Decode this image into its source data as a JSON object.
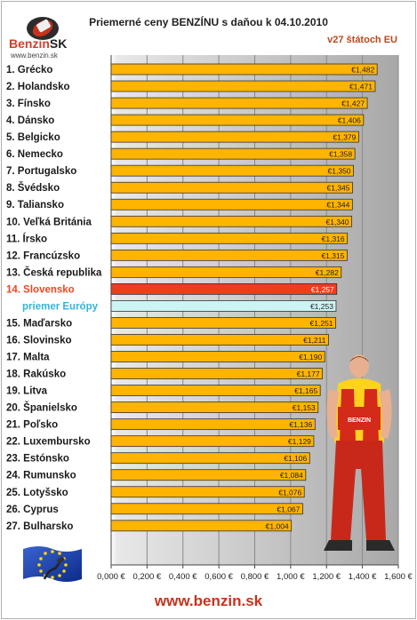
{
  "header": {
    "logo_text_1": "Benzin",
    "logo_text_2": "SK",
    "logo_url": "www.benzin.sk",
    "title": "Priemerné ceny BENZÍNU s daňou k 04.10.2010",
    "subtitle": "v27 štátoch EU"
  },
  "footer": {
    "url": "www.benzin.sk"
  },
  "colors": {
    "bar": "#ffb400",
    "bar_highlight": "#f03c1e",
    "bar_average": "#ccf4f4",
    "highlight_label": "#f0461e",
    "average_label": "#32b4dc",
    "plot_bg": "#a8a8a8"
  },
  "icons": [
    "logo-car-icon",
    "eu-flag-icon",
    "mechanic-figure-icon"
  ],
  "chart_data": {
    "type": "bar",
    "orientation": "horizontal",
    "title": "Priemerné ceny BENZÍNU s daňou k 04.10.2010",
    "subtitle": "v27 štátoch EU",
    "xlim": [
      0,
      1.6
    ],
    "x_ticks": [
      "0,000 €",
      "0,200 €",
      "0,400 €",
      "0,600 €",
      "0,800 €",
      "1,000 €",
      "1,200 €",
      "1,400 €",
      "1,600 €"
    ],
    "grid": "vertical",
    "categories": [
      "1. Grécko",
      "2. Holandsko",
      "3. Fínsko",
      "4. Dánsko",
      "5. Belgicko",
      "6. Nemecko",
      "7. Portugalsko",
      "8. Švédsko",
      "9. Taliansko",
      "10. Veľká Británia",
      "11. Írsko",
      "12. Francúzsko",
      "13. Česká republika",
      "14. Slovensko",
      "priemer Európy",
      "15. Maďarsko",
      "16. Slovinsko",
      "17. Malta",
      "18. Rakúsko",
      "19. Litva",
      "20. Španielsko",
      "21. Poľsko",
      "22. Luxembursko",
      "23. Estónsko",
      "24. Rumunsko",
      "25. Lotyšsko",
      "26. Cyprus",
      "27. Bulharsko"
    ],
    "values": [
      1.482,
      1.471,
      1.427,
      1.406,
      1.379,
      1.358,
      1.35,
      1.345,
      1.344,
      1.34,
      1.316,
      1.315,
      1.282,
      1.257,
      1.253,
      1.251,
      1.211,
      1.19,
      1.177,
      1.165,
      1.153,
      1.136,
      1.129,
      1.106,
      1.084,
      1.076,
      1.067,
      1.004
    ],
    "value_labels": [
      "€1,482",
      "€1,471",
      "€1,427",
      "€1,406",
      "€1,379",
      "€1,358",
      "€1,350",
      "€1,345",
      "€1,344",
      "€1,340",
      "€1,316",
      "€1,315",
      "€1,282",
      "€1,257",
      "€1,253",
      "€1,251",
      "€1,211",
      "€1,190",
      "€1,177",
      "€1,165",
      "€1,153",
      "€1,136",
      "€1,129",
      "€1,106",
      "€1,084",
      "€1,076",
      "€1,067",
      "€1,004"
    ],
    "highlight_index": 13,
    "average_index": 14
  }
}
